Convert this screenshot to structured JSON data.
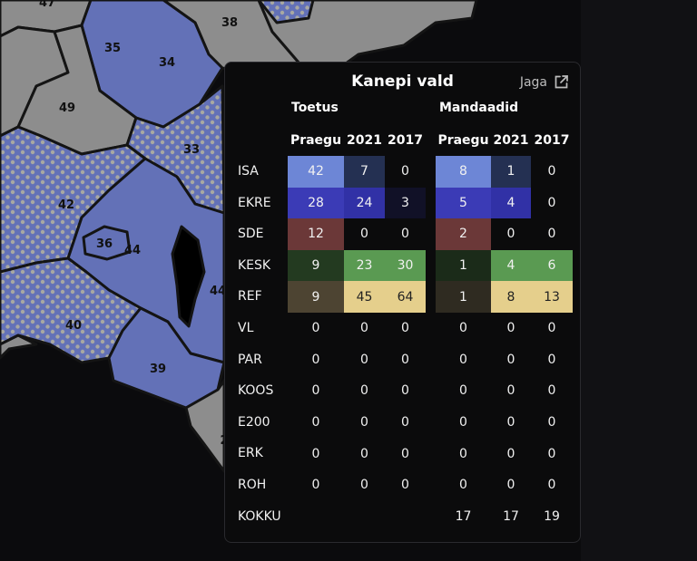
{
  "map": {
    "region_labels": [
      "38",
      "35",
      "34",
      "49",
      "33",
      "42",
      "36",
      "44",
      "44",
      "40",
      "39",
      "2",
      "47"
    ],
    "colors": {
      "gray": "#8d8d8d",
      "blue": "#6371b7",
      "dot": "#a8a8a2",
      "border": "#141414",
      "lake": "#000000"
    }
  },
  "panel": {
    "title": "Kanepi vald",
    "share_label": "Jaga",
    "share_icon": "external-link-icon",
    "groups": {
      "support": "Toetus",
      "seats": "Mandaadid"
    },
    "columns": [
      "Praegu",
      "2021",
      "2017"
    ],
    "total_label": "KOKKU",
    "rows": [
      {
        "party": "ISA",
        "support": [
          "42",
          "7",
          "0"
        ],
        "seats": [
          "8",
          "1",
          "0"
        ],
        "colors": [
          "#6d86d6",
          "#243052",
          "",
          "#6d86d6",
          "#243052",
          ""
        ]
      },
      {
        "party": "EKRE",
        "support": [
          "28",
          "24",
          "3"
        ],
        "seats": [
          "5",
          "4",
          "0"
        ],
        "colors": [
          "#3b3bb6",
          "#3131a6",
          "#111127",
          "#3b3bb6",
          "#3131a6",
          ""
        ]
      },
      {
        "party": "SDE",
        "support": [
          "12",
          "0",
          "0"
        ],
        "seats": [
          "2",
          "0",
          "0"
        ],
        "colors": [
          "#6b3838",
          "",
          "",
          "#6b3838",
          "",
          ""
        ]
      },
      {
        "party": "KESK",
        "support": [
          "9",
          "23",
          "30"
        ],
        "seats": [
          "1",
          "4",
          "6"
        ],
        "colors": [
          "#233a20",
          "#5a9a52",
          "#5a9a52",
          "#1b2b19",
          "#5a9a52",
          "#5a9a52"
        ]
      },
      {
        "party": "REF",
        "support": [
          "9",
          "45",
          "64"
        ],
        "seats": [
          "1",
          "8",
          "13"
        ],
        "colors": [
          "#4d4432",
          "#e5cf8c",
          "#e5cf8c",
          "#2f2b21",
          "#e5cf8c",
          "#e5cf8c"
        ]
      },
      {
        "party": "VL",
        "support": [
          "0",
          "0",
          "0"
        ],
        "seats": [
          "0",
          "0",
          "0"
        ],
        "colors": [
          "",
          "",
          "",
          "",
          "",
          ""
        ]
      },
      {
        "party": "PAR",
        "support": [
          "0",
          "0",
          "0"
        ],
        "seats": [
          "0",
          "0",
          "0"
        ],
        "colors": [
          "",
          "",
          "",
          "",
          "",
          ""
        ]
      },
      {
        "party": "KOOS",
        "support": [
          "0",
          "0",
          "0"
        ],
        "seats": [
          "0",
          "0",
          "0"
        ],
        "colors": [
          "",
          "",
          "",
          "",
          "",
          ""
        ]
      },
      {
        "party": "E200",
        "support": [
          "0",
          "0",
          "0"
        ],
        "seats": [
          "0",
          "0",
          "0"
        ],
        "colors": [
          "",
          "",
          "",
          "",
          "",
          ""
        ]
      },
      {
        "party": "ERK",
        "support": [
          "0",
          "0",
          "0"
        ],
        "seats": [
          "0",
          "0",
          "0"
        ],
        "colors": [
          "",
          "",
          "",
          "",
          "",
          ""
        ]
      },
      {
        "party": "ROH",
        "support": [
          "0",
          "0",
          "0"
        ],
        "seats": [
          "0",
          "0",
          "0"
        ],
        "colors": [
          "",
          "",
          "",
          "",
          "",
          ""
        ]
      }
    ],
    "totals": {
      "support": [
        "",
        "",
        ""
      ],
      "seats": [
        "17",
        "17",
        "19"
      ]
    }
  }
}
